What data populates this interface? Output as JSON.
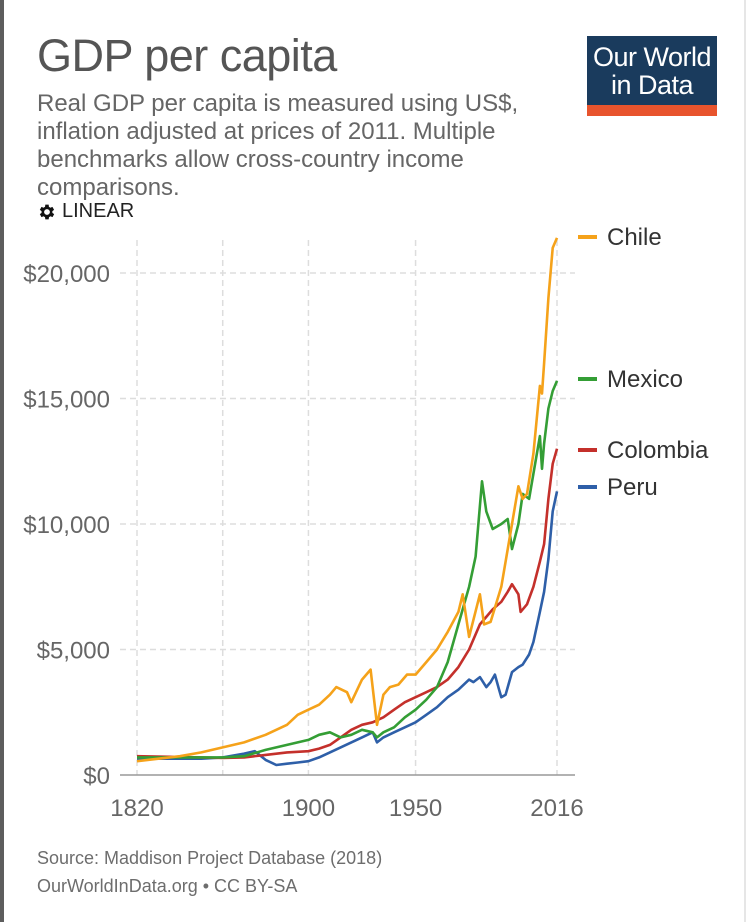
{
  "header": {
    "title": "GDP per capita",
    "subtitle": "Real GDP per capita is measured using US$, inflation adjusted at prices of 2011. Multiple benchmarks allow cross-country income comparisons.",
    "scale_toggle": "LINEAR",
    "scale_icon": "gear-icon"
  },
  "logo": {
    "line1": "Our World",
    "line2": "in Data",
    "bg_color": "#1a3b5d",
    "accent_color": "#e8542d"
  },
  "footer": {
    "source": "Source: Maddison Project Database (2018)",
    "license": "OurWorldInData.org • CC BY-SA"
  },
  "chart_data": {
    "type": "line",
    "title": "GDP per capita",
    "xlim": [
      1820,
      2016
    ],
    "ylim": [
      0,
      22000
    ],
    "x_ticks": [
      1820,
      1900,
      1950,
      2016
    ],
    "y_ticks": [
      0,
      5000,
      10000,
      15000,
      20000
    ],
    "x_tick_labels": [
      "1820",
      "1900",
      "1950",
      "2016"
    ],
    "y_tick_labels": [
      "$0",
      "$5,000",
      "$10,000",
      "$15,000",
      "$20,000"
    ],
    "grid": true,
    "legend_position": "right",
    "series": [
      {
        "name": "Chile",
        "color": "#f5a21a",
        "points": [
          [
            1820,
            550
          ],
          [
            1830,
            650
          ],
          [
            1840,
            750
          ],
          [
            1850,
            900
          ],
          [
            1860,
            1100
          ],
          [
            1870,
            1300
          ],
          [
            1880,
            1600
          ],
          [
            1890,
            2000
          ],
          [
            1895,
            2400
          ],
          [
            1900,
            2600
          ],
          [
            1905,
            2800
          ],
          [
            1910,
            3200
          ],
          [
            1913,
            3500
          ],
          [
            1918,
            3300
          ],
          [
            1920,
            2900
          ],
          [
            1925,
            3800
          ],
          [
            1929,
            4200
          ],
          [
            1932,
            2000
          ],
          [
            1935,
            3200
          ],
          [
            1938,
            3500
          ],
          [
            1942,
            3600
          ],
          [
            1946,
            4000
          ],
          [
            1950,
            4000
          ],
          [
            1955,
            4500
          ],
          [
            1960,
            5000
          ],
          [
            1965,
            5700
          ],
          [
            1970,
            6500
          ],
          [
            1972,
            7200
          ],
          [
            1975,
            5500
          ],
          [
            1980,
            7200
          ],
          [
            1982,
            6000
          ],
          [
            1985,
            6100
          ],
          [
            1990,
            7500
          ],
          [
            1995,
            10000
          ],
          [
            1998,
            11500
          ],
          [
            2000,
            11000
          ],
          [
            2002,
            11200
          ],
          [
            2005,
            12800
          ],
          [
            2008,
            15500
          ],
          [
            2009,
            15200
          ],
          [
            2010,
            16400
          ],
          [
            2012,
            19000
          ],
          [
            2014,
            21000
          ],
          [
            2016,
            21400
          ]
        ]
      },
      {
        "name": "Mexico",
        "color": "#349e35",
        "points": [
          [
            1820,
            700
          ],
          [
            1850,
            700
          ],
          [
            1860,
            700
          ],
          [
            1870,
            750
          ],
          [
            1880,
            1000
          ],
          [
            1890,
            1200
          ],
          [
            1900,
            1400
          ],
          [
            1905,
            1600
          ],
          [
            1910,
            1700
          ],
          [
            1915,
            1500
          ],
          [
            1920,
            1600
          ],
          [
            1925,
            1800
          ],
          [
            1930,
            1700
          ],
          [
            1932,
            1500
          ],
          [
            1935,
            1700
          ],
          [
            1940,
            1900
          ],
          [
            1945,
            2300
          ],
          [
            1950,
            2600
          ],
          [
            1955,
            3000
          ],
          [
            1960,
            3500
          ],
          [
            1965,
            4500
          ],
          [
            1970,
            6000
          ],
          [
            1975,
            7500
          ],
          [
            1978,
            8700
          ],
          [
            1981,
            11700
          ],
          [
            1983,
            10500
          ],
          [
            1986,
            9800
          ],
          [
            1990,
            10000
          ],
          [
            1993,
            10200
          ],
          [
            1995,
            9000
          ],
          [
            1998,
            10000
          ],
          [
            2000,
            11200
          ],
          [
            2003,
            11000
          ],
          [
            2005,
            12000
          ],
          [
            2008,
            13500
          ],
          [
            2009,
            12200
          ],
          [
            2010,
            13200
          ],
          [
            2012,
            14600
          ],
          [
            2014,
            15300
          ],
          [
            2016,
            15700
          ]
        ]
      },
      {
        "name": "Colombia",
        "color": "#c4302b",
        "points": [
          [
            1820,
            750
          ],
          [
            1850,
            700
          ],
          [
            1860,
            680
          ],
          [
            1870,
            700
          ],
          [
            1880,
            800
          ],
          [
            1890,
            900
          ],
          [
            1900,
            950
          ],
          [
            1905,
            1050
          ],
          [
            1910,
            1200
          ],
          [
            1915,
            1500
          ],
          [
            1920,
            1800
          ],
          [
            1925,
            2000
          ],
          [
            1930,
            2100
          ],
          [
            1935,
            2300
          ],
          [
            1940,
            2600
          ],
          [
            1945,
            2900
          ],
          [
            1950,
            3100
          ],
          [
            1955,
            3300
          ],
          [
            1960,
            3500
          ],
          [
            1965,
            3800
          ],
          [
            1970,
            4300
          ],
          [
            1975,
            5000
          ],
          [
            1980,
            6000
          ],
          [
            1983,
            6300
          ],
          [
            1986,
            6600
          ],
          [
            1990,
            6900
          ],
          [
            1993,
            7300
          ],
          [
            1995,
            7600
          ],
          [
            1998,
            7200
          ],
          [
            1999,
            6500
          ],
          [
            2002,
            6800
          ],
          [
            2005,
            7500
          ],
          [
            2008,
            8500
          ],
          [
            2010,
            9200
          ],
          [
            2012,
            11000
          ],
          [
            2014,
            12400
          ],
          [
            2016,
            13000
          ]
        ]
      },
      {
        "name": "Peru",
        "color": "#2e5fa8",
        "points": [
          [
            1820,
            650
          ],
          [
            1850,
            650
          ],
          [
            1860,
            700
          ],
          [
            1870,
            850
          ],
          [
            1875,
            950
          ],
          [
            1880,
            600
          ],
          [
            1885,
            400
          ],
          [
            1890,
            450
          ],
          [
            1895,
            500
          ],
          [
            1900,
            550
          ],
          [
            1905,
            700
          ],
          [
            1910,
            900
          ],
          [
            1915,
            1100
          ],
          [
            1920,
            1300
          ],
          [
            1925,
            1500
          ],
          [
            1930,
            1700
          ],
          [
            1932,
            1300
          ],
          [
            1935,
            1500
          ],
          [
            1940,
            1700
          ],
          [
            1945,
            1900
          ],
          [
            1950,
            2100
          ],
          [
            1955,
            2400
          ],
          [
            1960,
            2700
          ],
          [
            1965,
            3100
          ],
          [
            1970,
            3400
          ],
          [
            1975,
            3800
          ],
          [
            1977,
            3700
          ],
          [
            1980,
            3900
          ],
          [
            1983,
            3500
          ],
          [
            1985,
            3700
          ],
          [
            1987,
            4000
          ],
          [
            1989,
            3400
          ],
          [
            1990,
            3100
          ],
          [
            1992,
            3200
          ],
          [
            1995,
            4100
          ],
          [
            1998,
            4300
          ],
          [
            2000,
            4400
          ],
          [
            2003,
            4800
          ],
          [
            2005,
            5300
          ],
          [
            2008,
            6500
          ],
          [
            2010,
            7300
          ],
          [
            2012,
            8600
          ],
          [
            2014,
            10500
          ],
          [
            2016,
            11300
          ]
        ]
      }
    ]
  }
}
